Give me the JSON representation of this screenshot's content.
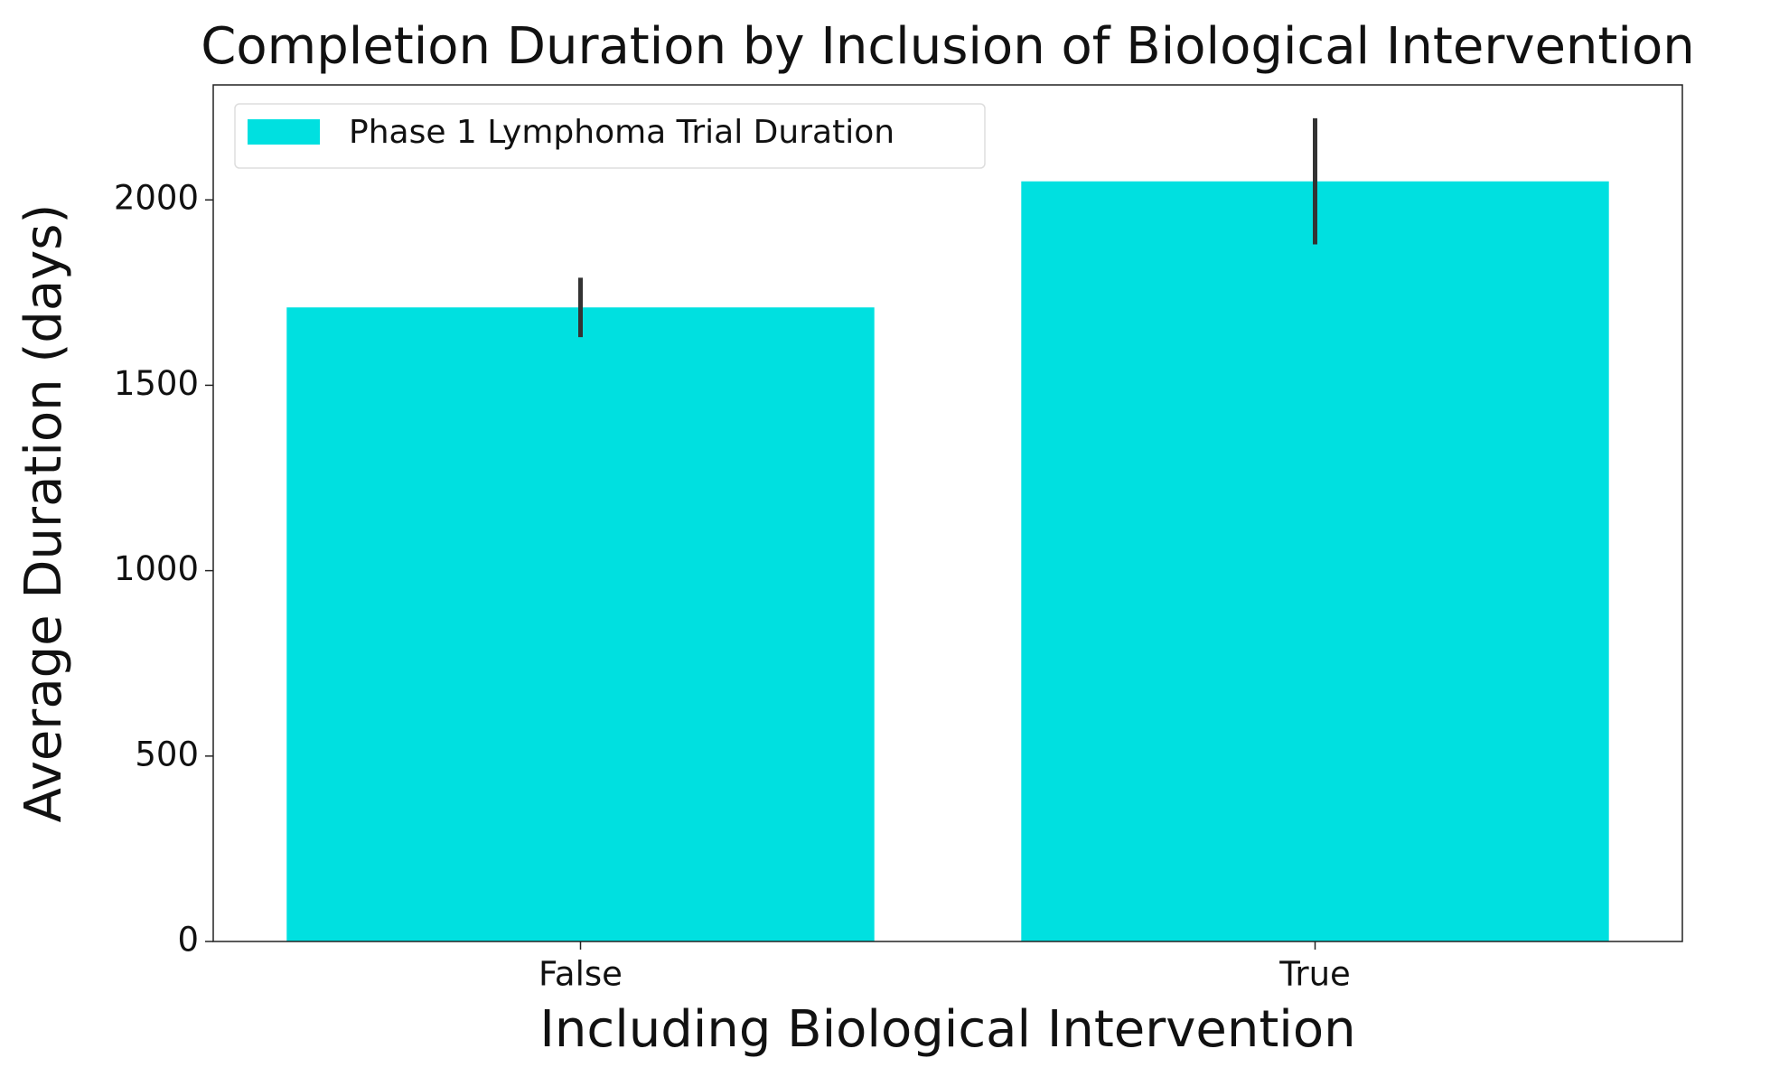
{
  "chart_data": {
    "type": "bar",
    "title": "Completion Duration by Inclusion of Biological Intervention",
    "x_label": "Including Biological Intervention",
    "y_label": "Average Duration (days)",
    "categories": [
      "False",
      "True"
    ],
    "series": [
      {
        "name": "Phase 1 Lymphoma Trial Duration",
        "color": "#00e0e0",
        "values": [
          1710,
          2050
        ],
        "errors": [
          80,
          170
        ]
      }
    ],
    "ylim": [
      0,
      2310
    ],
    "yticks": [
      0,
      500,
      1000,
      1500,
      2000
    ],
    "grid": false,
    "legend": "upper left"
  }
}
